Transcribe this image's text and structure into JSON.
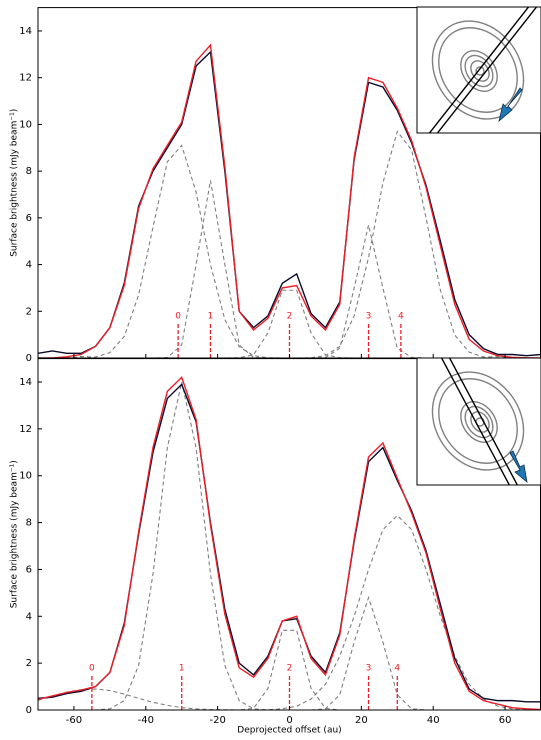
{
  "chart_data": [
    {
      "type": "line",
      "ylabel": "Surface brightness (mJy beam⁻¹)",
      "xlim": [
        -70,
        70
      ],
      "xticks": [
        -60,
        -40,
        -20,
        0,
        20,
        40,
        60
      ],
      "ylim": [
        0,
        15
      ],
      "yticks": [
        0,
        2,
        4,
        6,
        8,
        10,
        12,
        14
      ],
      "x": [
        -70,
        -66,
        -62,
        -58,
        -54,
        -50,
        -46,
        -42,
        -38,
        -34,
        -30,
        -26,
        -22,
        -18,
        -14,
        -10,
        -6,
        -2,
        2,
        6,
        10,
        14,
        18,
        22,
        26,
        30,
        34,
        38,
        42,
        46,
        50,
        54,
        58,
        62,
        66,
        70
      ],
      "series": [
        {
          "color": "#7f7f7f",
          "linestyle": "dashed",
          "values": [
            0,
            0,
            0,
            0.06,
            0.04,
            0.23,
            0.92,
            2.7,
            5.6,
            8.4,
            9.1,
            7.1,
            4.0,
            1.65,
            0.48,
            0.1,
            0.01,
            0,
            0,
            0,
            0,
            0,
            0,
            0,
            0,
            0,
            0,
            0,
            0,
            0,
            0,
            0,
            0,
            0,
            0,
            0
          ]
        },
        {
          "color": "#7f7f7f",
          "linestyle": "dashed",
          "values": [
            0,
            0,
            0,
            0,
            0,
            0,
            0,
            0,
            0,
            0.02,
            0.56,
            4.0,
            7.6,
            4.0,
            0.56,
            0.02,
            0,
            0,
            0,
            0,
            0,
            0,
            0,
            0,
            0,
            0,
            0,
            0,
            0,
            0,
            0,
            0,
            0,
            0,
            0,
            0
          ]
        },
        {
          "color": "#7f7f7f",
          "linestyle": "dashed",
          "values": [
            0,
            0,
            0,
            0,
            0,
            0,
            0,
            0,
            0,
            0,
            0,
            0,
            0,
            0,
            0.01,
            0.14,
            1.07,
            2.9,
            2.9,
            1.07,
            0.14,
            0.01,
            0,
            0,
            0,
            0,
            0,
            0,
            0,
            0,
            0,
            0,
            0,
            0,
            0,
            0
          ]
        },
        {
          "color": "#7f7f7f",
          "linestyle": "dashed",
          "values": [
            0,
            0,
            0,
            0,
            0,
            0,
            0,
            0,
            0,
            0,
            0,
            0,
            0,
            0,
            0,
            0,
            0,
            0,
            0,
            0,
            0.02,
            0.42,
            3.0,
            5.7,
            3.0,
            0.42,
            0.02,
            0,
            0,
            0,
            0,
            0,
            0,
            0,
            0,
            0
          ]
        },
        {
          "color": "#7f7f7f",
          "linestyle": "dashed",
          "values": [
            0,
            0,
            0,
            0,
            0,
            0,
            0,
            0,
            0,
            0,
            0,
            0,
            0,
            0,
            0,
            0,
            0,
            0,
            0,
            0.01,
            0.1,
            0.5,
            1.8,
            4.3,
            7.5,
            9.7,
            8.9,
            6.0,
            2.9,
            0.98,
            0.25,
            0.04,
            0.06,
            0,
            0,
            0
          ]
        },
        {
          "color": "#0a0a2a",
          "linestyle": "solid",
          "values": [
            0.2,
            0.3,
            0.2,
            0.2,
            0.5,
            1.3,
            3.2,
            6.5,
            8.0,
            9.0,
            10.0,
            12.5,
            13.1,
            8.0,
            2.0,
            1.3,
            1.8,
            3.2,
            3.6,
            1.9,
            1.3,
            2.4,
            8.5,
            11.8,
            11.6,
            10.6,
            9.2,
            7.4,
            5.0,
            2.5,
            1.0,
            0.4,
            0.15,
            0.15,
            0.1,
            0.15
          ]
        },
        {
          "color": "#e8202a",
          "linestyle": "solid",
          "values": [
            0,
            0,
            0.05,
            0.15,
            0.5,
            1.3,
            3.1,
            6.4,
            8.1,
            9.1,
            10.1,
            12.7,
            13.4,
            8.2,
            2.0,
            1.2,
            1.7,
            3.0,
            3.1,
            1.8,
            1.2,
            2.3,
            8.6,
            12.0,
            11.8,
            10.7,
            9.3,
            7.3,
            4.8,
            2.3,
            0.8,
            0.3,
            0.1,
            0.03,
            0.01,
            0
          ]
        }
      ],
      "markers": {
        "color": "#e8202a",
        "x": [
          -31,
          -22,
          0,
          22,
          31
        ],
        "labels": [
          "0",
          "1",
          "2",
          "3",
          "4"
        ]
      }
    },
    {
      "type": "line",
      "ylabel": "Surface brightness (mJy beam⁻¹)",
      "xlabel": "Deprojected offset (au)",
      "xlim": [
        -70,
        70
      ],
      "xticks": [
        -60,
        -40,
        -20,
        0,
        20,
        40,
        60
      ],
      "ylim": [
        0,
        15
      ],
      "yticks": [
        0,
        2,
        4,
        6,
        8,
        10,
        12,
        14
      ],
      "x": [
        -70,
        -66,
        -62,
        -58,
        -54,
        -50,
        -46,
        -42,
        -38,
        -34,
        -30,
        -26,
        -22,
        -18,
        -14,
        -10,
        -6,
        -2,
        2,
        6,
        10,
        14,
        18,
        22,
        26,
        30,
        34,
        38,
        42,
        46,
        50,
        54,
        58,
        62,
        66,
        70
      ],
      "series": [
        {
          "color": "#7f7f7f",
          "linestyle": "dashed",
          "values": [
            0.41,
            0.59,
            0.76,
            0.87,
            0.9,
            0.83,
            0.68,
            0.5,
            0.33,
            0.2,
            0.1,
            0.05,
            0.02,
            0.01,
            0,
            0,
            0,
            0,
            0,
            0,
            0,
            0,
            0,
            0,
            0,
            0,
            0,
            0,
            0,
            0,
            0,
            0,
            0,
            0,
            0,
            0
          ]
        },
        {
          "color": "#7f7f7f",
          "linestyle": "dashed",
          "values": [
            0,
            0,
            0,
            0,
            0,
            0.05,
            0.4,
            1.9,
            5.8,
            11.2,
            14,
            11.2,
            5.8,
            1.9,
            0.4,
            0.05,
            0,
            0,
            0,
            0,
            0,
            0,
            0,
            0,
            0,
            0,
            0,
            0,
            0,
            0,
            0,
            0,
            0,
            0,
            0,
            0
          ]
        },
        {
          "color": "#7f7f7f",
          "linestyle": "dashed",
          "values": [
            0,
            0,
            0,
            0,
            0,
            0,
            0,
            0,
            0,
            0,
            0,
            0,
            0,
            0,
            0,
            0.07,
            0.92,
            3.4,
            3.4,
            0.92,
            0.07,
            0,
            0,
            0,
            0,
            0,
            0,
            0,
            0,
            0,
            0,
            0,
            0,
            0,
            0,
            0
          ]
        },
        {
          "color": "#7f7f7f",
          "linestyle": "dashed",
          "values": [
            0,
            0,
            0,
            0,
            0,
            0,
            0,
            0,
            0,
            0,
            0,
            0,
            0,
            0,
            0,
            0,
            0,
            0,
            0,
            0,
            0.05,
            0.65,
            2.9,
            4.8,
            2.9,
            0.65,
            0.05,
            0,
            0,
            0,
            0,
            0,
            0,
            0,
            0,
            0
          ]
        },
        {
          "color": "#7f7f7f",
          "linestyle": "dashed",
          "values": [
            0,
            0,
            0,
            0,
            0,
            0,
            0,
            0,
            0,
            0,
            0,
            0,
            0,
            0,
            0,
            0,
            0.01,
            0.05,
            0.16,
            0.47,
            1.1,
            2.3,
            4.0,
            6.0,
            7.7,
            8.3,
            7.7,
            6.0,
            4.0,
            2.3,
            1.1,
            0.47,
            0.16,
            0.05,
            0.01,
            0
          ]
        },
        {
          "color": "#0a0a2a",
          "linestyle": "solid",
          "values": [
            0.5,
            0.55,
            0.7,
            0.8,
            1.0,
            1.6,
            3.7,
            7.5,
            11.0,
            13.3,
            13.9,
            12.3,
            8.0,
            4.3,
            2.0,
            1.5,
            2.3,
            3.8,
            3.9,
            2.3,
            1.6,
            3.3,
            7.2,
            10.6,
            11.2,
            9.8,
            8.5,
            6.8,
            4.5,
            2.2,
            0.9,
            0.5,
            0.4,
            0.4,
            0.35,
            0.35
          ]
        },
        {
          "color": "#e8202a",
          "linestyle": "solid",
          "values": [
            0.45,
            0.6,
            0.75,
            0.85,
            1.0,
            1.6,
            3.6,
            7.6,
            11.2,
            13.6,
            14.2,
            12.4,
            7.9,
            4.1,
            1.8,
            1.4,
            2.2,
            3.8,
            4.0,
            2.2,
            1.5,
            3.2,
            7.3,
            10.8,
            11.4,
            9.9,
            8.4,
            6.7,
            4.3,
            2.0,
            0.8,
            0.4,
            0.25,
            0.1,
            0.05,
            0.02
          ]
        }
      ],
      "markers": {
        "color": "#e8202a",
        "x": [
          -55,
          -30,
          0,
          22,
          30
        ],
        "labels": [
          "0",
          "1",
          "2",
          "3",
          "4"
        ]
      }
    }
  ]
}
